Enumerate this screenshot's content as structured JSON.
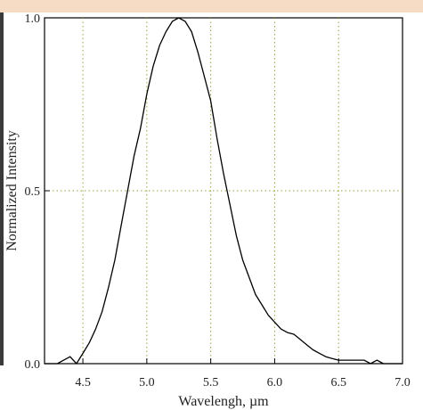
{
  "chart_data": {
    "type": "line",
    "title": "",
    "xlabel": "Wavelengh, µm",
    "ylabel": "Normalized Intensity",
    "xlim": [
      4.2,
      7.0
    ],
    "ylim": [
      0.0,
      1.0
    ],
    "x_ticks": [
      "4.5",
      "5.0",
      "5.5",
      "6.0",
      "6.5",
      "7.0"
    ],
    "y_ticks": [
      "0.0",
      "0.5",
      "1.0"
    ],
    "grid": "dotted, olive, at x = 4.5, 5.0, 5.5, 6.0, 6.5 and y = 0.5",
    "series": [
      {
        "x": [
          4.2,
          4.3,
          4.35,
          4.4,
          4.45,
          4.5,
          4.55,
          4.6,
          4.65,
          4.7,
          4.75,
          4.8,
          4.85,
          4.9,
          4.95,
          5.0,
          5.05,
          5.1,
          5.15,
          5.2,
          5.25,
          5.3,
          5.35,
          5.4,
          5.45,
          5.5,
          5.55,
          5.6,
          5.65,
          5.7,
          5.75,
          5.8,
          5.85,
          5.9,
          5.95,
          6.0,
          6.05,
          6.1,
          6.15,
          6.2,
          6.25,
          6.3,
          6.35,
          6.4,
          6.45,
          6.5,
          6.55,
          6.6,
          6.65,
          6.7,
          6.75,
          6.8,
          6.85,
          6.9,
          6.95,
          7.0
        ],
        "y": [
          0.0,
          0.0,
          0.01,
          0.02,
          0.0,
          0.03,
          0.06,
          0.1,
          0.15,
          0.22,
          0.3,
          0.4,
          0.5,
          0.6,
          0.68,
          0.78,
          0.86,
          0.92,
          0.96,
          0.99,
          1.0,
          0.99,
          0.96,
          0.9,
          0.83,
          0.76,
          0.65,
          0.55,
          0.46,
          0.37,
          0.3,
          0.25,
          0.2,
          0.17,
          0.14,
          0.12,
          0.1,
          0.09,
          0.085,
          0.07,
          0.055,
          0.04,
          0.03,
          0.02,
          0.015,
          0.01,
          0.01,
          0.01,
          0.01,
          0.01,
          0.0,
          0.01,
          0.0,
          0.0,
          0.0,
          0.0
        ],
        "color": "#000000"
      }
    ],
    "grid_color": "#9aa33a"
  }
}
